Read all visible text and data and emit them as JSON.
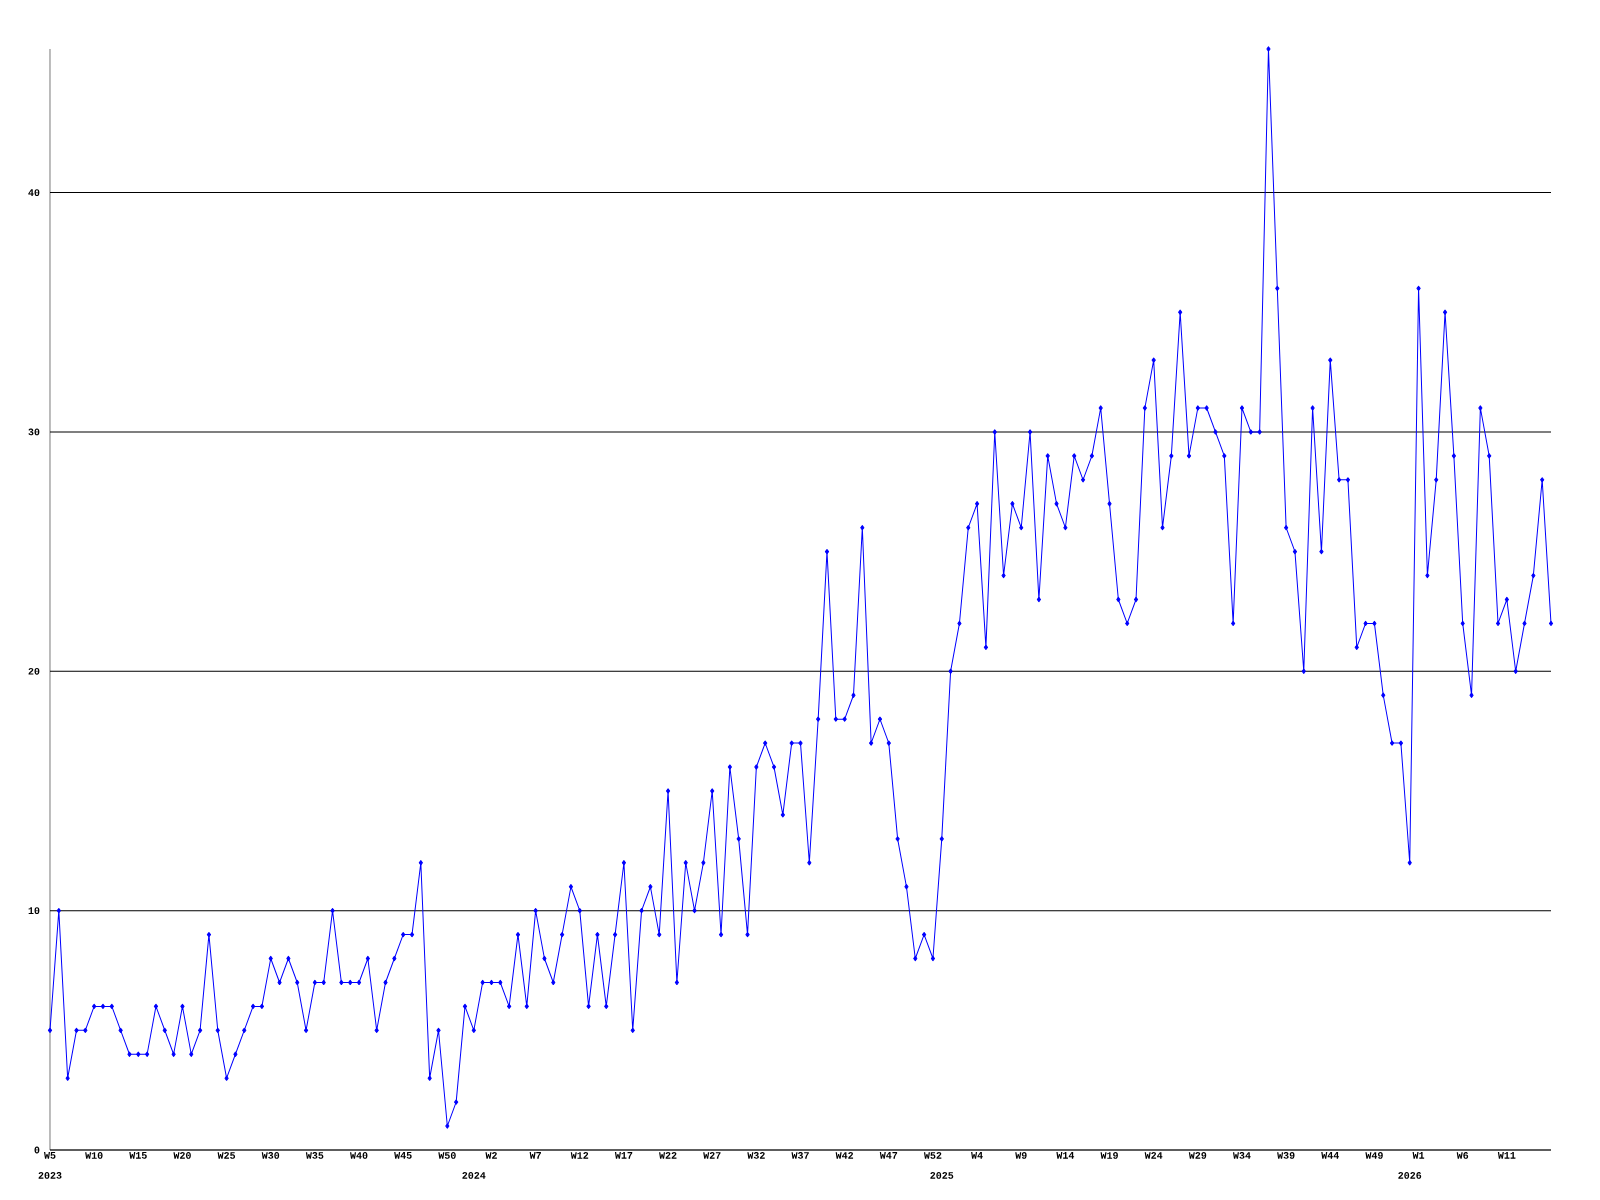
{
  "chart_data": {
    "type": "line",
    "categories": [
      "W5",
      null,
      null,
      null,
      null,
      "W10",
      null,
      null,
      null,
      null,
      "W15",
      null,
      null,
      null,
      null,
      "W20",
      null,
      null,
      null,
      null,
      "W25",
      null,
      null,
      null,
      null,
      "W30",
      null,
      null,
      null,
      null,
      "W35",
      null,
      null,
      null,
      null,
      "W40",
      null,
      null,
      null,
      null,
      "W45",
      null,
      null,
      null,
      null,
      "W50",
      null,
      null,
      "2024",
      null,
      "W2",
      null,
      null,
      null,
      null,
      "W7",
      null,
      null,
      null,
      null,
      "W12",
      null,
      null,
      null,
      null,
      "W17",
      null,
      null,
      null,
      null,
      "W22",
      null,
      null,
      null,
      null,
      "W27",
      null,
      null,
      null,
      null,
      "W32",
      null,
      null,
      null,
      null,
      "W37",
      null,
      null,
      null,
      null,
      "W42",
      null,
      null,
      null,
      null,
      "W47",
      null,
      null,
      null,
      null,
      "W52",
      "2025",
      null,
      null,
      null,
      "W4",
      null,
      null,
      null,
      null,
      "W9",
      null,
      null,
      null,
      null,
      "W14",
      null,
      null,
      null,
      null,
      "W19",
      null,
      null,
      null,
      null,
      "W24",
      null,
      null,
      null,
      null,
      "W29",
      null,
      null,
      null,
      null,
      "W34",
      null,
      null,
      null,
      null,
      "W39",
      null,
      null,
      null,
      null,
      "W44",
      null,
      null,
      null,
      null,
      "W49",
      null,
      null,
      null,
      "2026",
      "W1",
      null,
      null,
      null,
      null,
      "W6",
      null,
      null,
      null,
      null,
      "W11",
      null,
      null,
      null,
      null,
      null
    ],
    "series": [
      {
        "color": "#0000ff",
        "values": [
          5,
          10,
          3,
          5,
          5,
          6,
          6,
          6,
          5,
          4,
          4,
          4,
          6,
          5,
          4,
          6,
          4,
          5,
          9,
          5,
          3,
          4,
          5,
          6,
          6,
          8,
          7,
          8,
          7,
          5,
          7,
          7,
          10,
          7,
          7,
          7,
          8,
          5,
          7,
          8,
          9,
          9,
          12,
          3,
          5,
          1,
          2,
          6,
          5,
          7,
          7,
          7,
          6,
          9,
          6,
          10,
          8,
          7,
          9,
          11,
          10,
          6,
          9,
          6,
          9,
          12,
          5,
          10,
          11,
          9,
          15,
          7,
          12,
          10,
          12,
          15,
          9,
          16,
          13,
          9,
          16,
          17,
          16,
          14,
          17,
          17,
          12,
          18,
          25,
          18,
          18,
          19,
          26,
          17,
          18,
          17,
          13,
          11,
          8,
          9,
          8,
          13,
          20,
          22,
          26,
          27,
          21,
          30,
          24,
          27,
          26,
          30,
          23,
          29,
          27,
          26,
          29,
          28,
          29,
          31,
          27,
          23,
          22,
          23,
          31,
          33,
          26,
          29,
          35,
          29,
          31,
          31,
          30,
          29,
          22,
          31,
          30,
          30,
          46,
          36,
          26,
          25,
          20,
          31,
          25,
          33,
          28,
          28,
          21,
          22,
          22,
          19,
          17,
          17,
          12,
          36,
          24,
          28,
          35,
          29,
          22,
          19,
          31,
          29,
          22,
          23,
          20,
          22,
          24,
          28,
          22
        ]
      }
    ],
    "ylim": [
      0,
      46
    ],
    "yticks": [
      0,
      10,
      20,
      30,
      40
    ],
    "grid": "y",
    "marker": "diamond",
    "line_style": "solid",
    "annotations": [
      "2023"
    ]
  }
}
